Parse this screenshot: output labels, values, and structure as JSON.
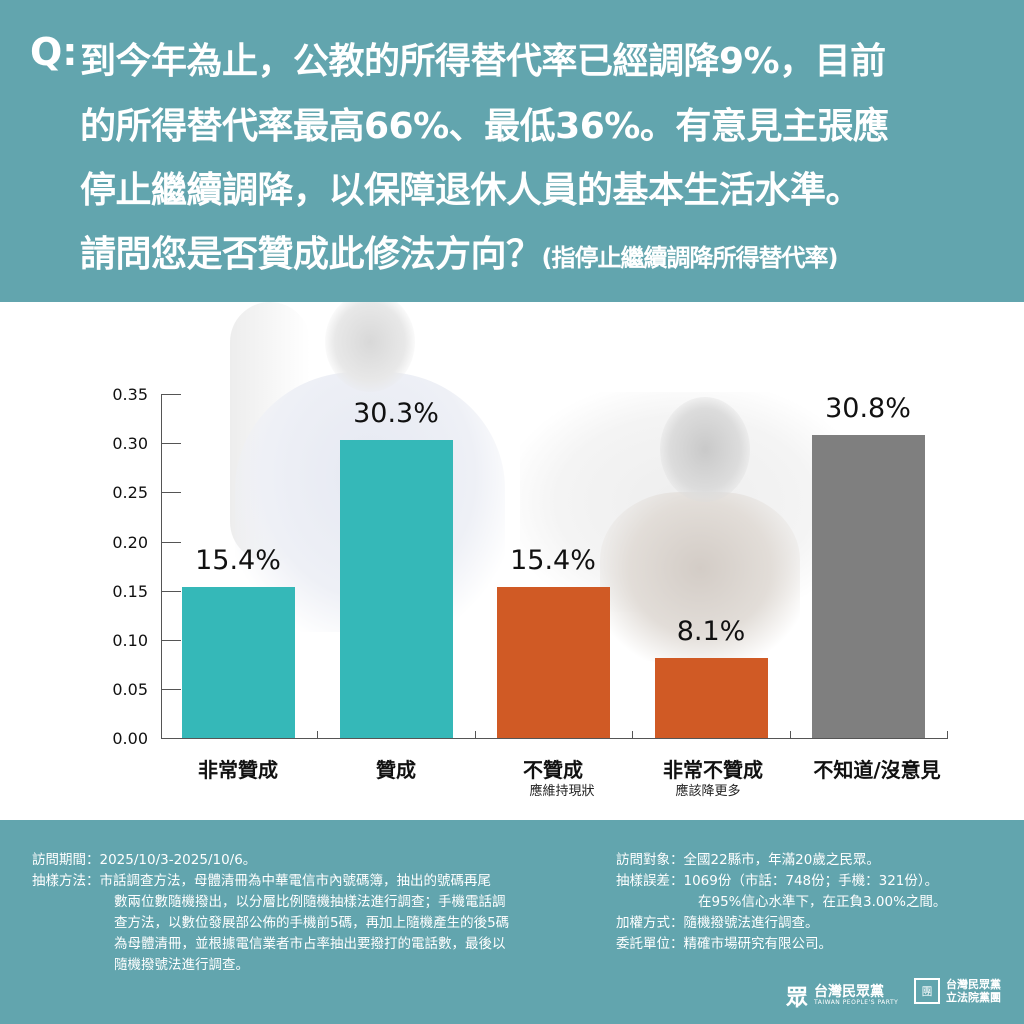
{
  "header": {
    "q_label": "Q:",
    "lines": [
      "到今年為止，公教的所得替代率已經調降9%，目前",
      "的所得替代率最高66%、最低36%。有意見主張應",
      "停止繼續調降，以保障退休人員的基本生活水準。",
      "請問您是否贊成此修法方向？"
    ],
    "note": "(指停止繼續調降所得替代率)"
  },
  "chart_data": {
    "type": "bar",
    "title": "請問您是否贊成此修法方向？(指停止繼續調降所得替代率)",
    "xlabel": "",
    "ylabel": "",
    "ylim": [
      0,
      0.35
    ],
    "yticks": [
      "0.00",
      "0.05",
      "0.10",
      "0.15",
      "0.20",
      "0.25",
      "0.30",
      "0.35"
    ],
    "grid": false,
    "legend": null,
    "categories": [
      "非常贊成",
      "贊成",
      "不贊成",
      "非常不贊成",
      "不知道/沒意見"
    ],
    "sublabels": [
      "",
      "",
      "應維持現狀",
      "應該降更多",
      ""
    ],
    "values": [
      0.154,
      0.303,
      0.154,
      0.081,
      0.308
    ],
    "value_labels": [
      "15.4%",
      "30.3%",
      "15.4%",
      "8.1%",
      "30.8%"
    ],
    "colors": [
      "#35b8b8",
      "#35b8b8",
      "#d05a25",
      "#d05a25",
      "#7f7f7f"
    ]
  },
  "footer": {
    "left": [
      {
        "key": "訪問期間：",
        "lines": [
          "2025/10/3-2025/10/6。"
        ]
      },
      {
        "key": "抽樣方法：",
        "lines": [
          "市話調查方法，母體清冊為中華電信市內號碼簿，抽出的號碼再尾",
          "數兩位數隨機撥出，以分層比例隨機抽樣法進行調查；手機電話調",
          "查方法，以數位發展部公佈的手機前5碼，再加上隨機產生的後5碼",
          "為母體清冊，並根據電信業者市占率抽出要撥打的電話數，最後以",
          "隨機撥號法進行調查。"
        ]
      }
    ],
    "right": [
      {
        "key": "訪問對象：",
        "lines": [
          "全國22縣市，年滿20歲之民眾。"
        ]
      },
      {
        "key": "抽樣誤差：",
        "lines": [
          "1069份（市話：748份；手機：321份）。",
          "在95%信心水準下，在正負3.00%之間。"
        ]
      },
      {
        "key": "加權方式：",
        "lines": [
          "隨機撥號法進行調查。"
        ]
      },
      {
        "key": "委託單位：",
        "lines": [
          "精確市場研究有限公司。"
        ]
      }
    ]
  },
  "logos": {
    "party_mark": "眾",
    "party_name": "台灣民眾黨",
    "party_en": "TAIWAN PEOPLE'S PARTY",
    "caucus_mark": "團",
    "caucus_line1": "台灣民眾黨",
    "caucus_line2": "立法院黨團"
  },
  "colors": {
    "header_bg": "#62a5ae",
    "support": "#35b8b8",
    "oppose": "#d05a25",
    "unknown": "#7f7f7f"
  }
}
